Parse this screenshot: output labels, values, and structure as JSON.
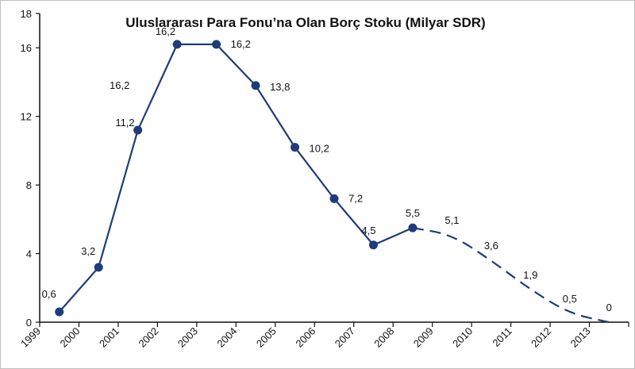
{
  "chart_data": {
    "type": "line",
    "title": "Uluslararası Para Fonu’na Olan Borç Stoku (Milyar SDR)",
    "xlabel": "",
    "ylabel": "",
    "ylim": [
      0,
      18
    ],
    "yticks": [
      "0",
      "4",
      "8",
      "12",
      "16",
      "18"
    ],
    "categories": [
      "1999",
      "2000",
      "2001",
      "2002",
      "2003",
      "2004",
      "2005",
      "2006",
      "2007",
      "2008",
      "2009",
      "2010",
      "2011",
      "2012",
      "2013"
    ],
    "grid": false,
    "legend": "none",
    "colors": {
      "line": "#1f3b7a",
      "axis": "#111111"
    },
    "series": [
      {
        "x": [
          1999.5,
          2000.5,
          2001.5,
          2002.5,
          2003.5,
          2004.5,
          2005.5,
          2006.5,
          2007.5,
          2008.5
        ],
        "values": [
          0.6,
          3.2,
          11.2,
          16.2,
          16.2,
          13.8,
          10.2,
          7.2,
          4.5,
          5.5
        ],
        "labels": [
          "0,6",
          "3,2",
          "11,2",
          "16,2",
          "16,2",
          "13,8",
          "10,2",
          "7,2",
          "4,5",
          "5,5"
        ],
        "style": "solid-markers"
      },
      {
        "x": [
          2008.5,
          2009.5,
          2010.5,
          2011.5,
          2012.5,
          2013.5
        ],
        "values": [
          5.5,
          5.1,
          3.6,
          1.9,
          0.5,
          0
        ],
        "labels": [
          "",
          "5,1",
          "3,6",
          "1,9",
          "0,5",
          "0"
        ],
        "style": "dashed"
      }
    ],
    "annotations": [
      "16,2"
    ]
  }
}
